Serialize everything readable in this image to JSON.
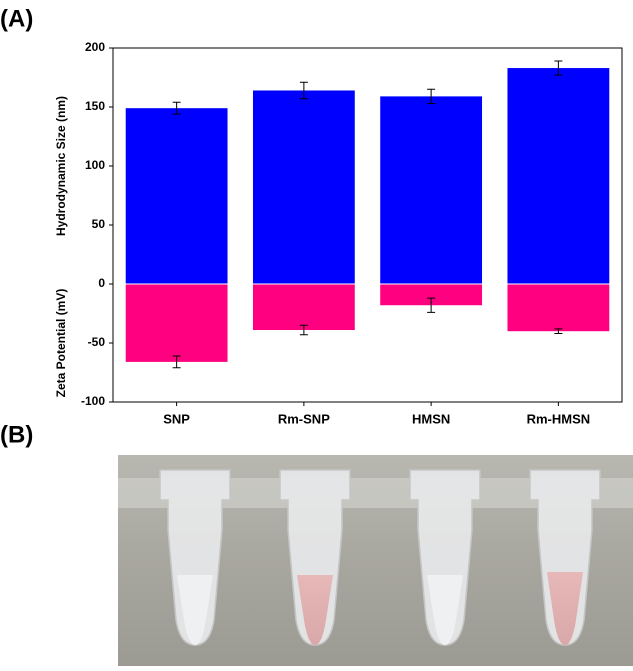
{
  "panel_labels": [
    "(A)",
    "(B)"
  ],
  "chart_data": {
    "type": "bar",
    "categories": [
      "SNP",
      "Rm-SNP",
      "HMSN",
      "Rm-HMSN"
    ],
    "series": [
      {
        "name": "Hydrodynamic Size (nm)",
        "color": "#0000ff",
        "values": [
          149,
          164,
          159,
          183
        ],
        "errors": [
          5,
          7,
          6,
          6
        ]
      },
      {
        "name": "Zeta Potential (mV)",
        "color": "#ff0080",
        "values": [
          -66,
          -39,
          -18,
          -40
        ],
        "errors": [
          5,
          4,
          6,
          2
        ]
      }
    ],
    "ylim": [
      -100,
      200
    ],
    "yticks": [
      -100,
      -50,
      0,
      50,
      100,
      150,
      200
    ]
  }
}
